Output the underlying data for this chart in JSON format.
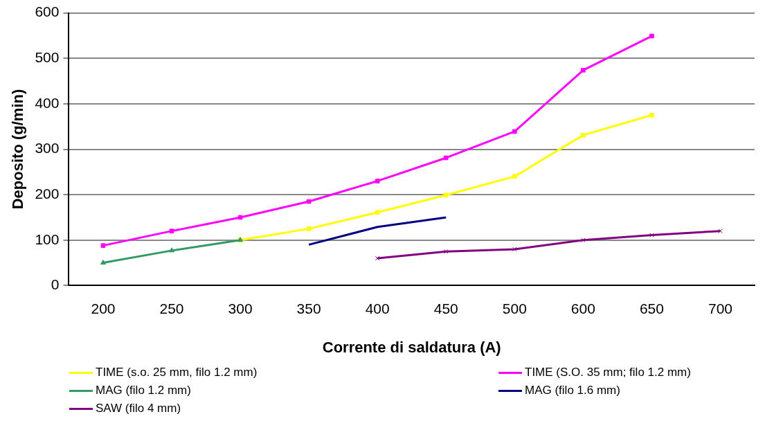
{
  "chart_data": {
    "type": "line",
    "xlabel": "Corrente di saldatura (A)",
    "ylabel": "Deposito (g/min)",
    "categories": [
      "200",
      "250",
      "300",
      "350",
      "400",
      "450",
      "500",
      "600",
      "650",
      "700"
    ],
    "ylim": [
      0,
      600
    ],
    "yticks": [
      0,
      100,
      200,
      300,
      400,
      500,
      600
    ],
    "grid": "y",
    "legend": "bottom",
    "series": [
      {
        "name": "TIME  (s.o. 25 mm, filo 1.2 mm)",
        "color": "#ffff00",
        "marker": "square",
        "values": [
          null,
          null,
          100,
          125,
          161,
          199,
          240,
          331,
          375,
          null
        ]
      },
      {
        "name": "TIME (S.O. 35 mm; filo 1.2 mm)",
        "color": "#ff00ff",
        "marker": "square",
        "values": [
          88,
          120,
          150,
          185,
          230,
          281,
          339,
          474,
          549,
          null
        ]
      },
      {
        "name": "MAG (filo 1.2 mm)",
        "color": "#339966",
        "marker": "triangle",
        "values": [
          50,
          77,
          100,
          null,
          null,
          null,
          null,
          null,
          null,
          null
        ]
      },
      {
        "name": "MAG (filo 1.6 mm)",
        "color": "#000080",
        "marker": "none",
        "values": [
          null,
          null,
          null,
          90,
          129,
          150,
          null,
          null,
          null,
          null
        ]
      },
      {
        "name": "SAW (filo 4 mm)",
        "color": "#800080",
        "marker": "cross",
        "values": [
          null,
          null,
          null,
          null,
          60,
          75,
          80,
          100,
          111,
          120
        ]
      }
    ]
  }
}
